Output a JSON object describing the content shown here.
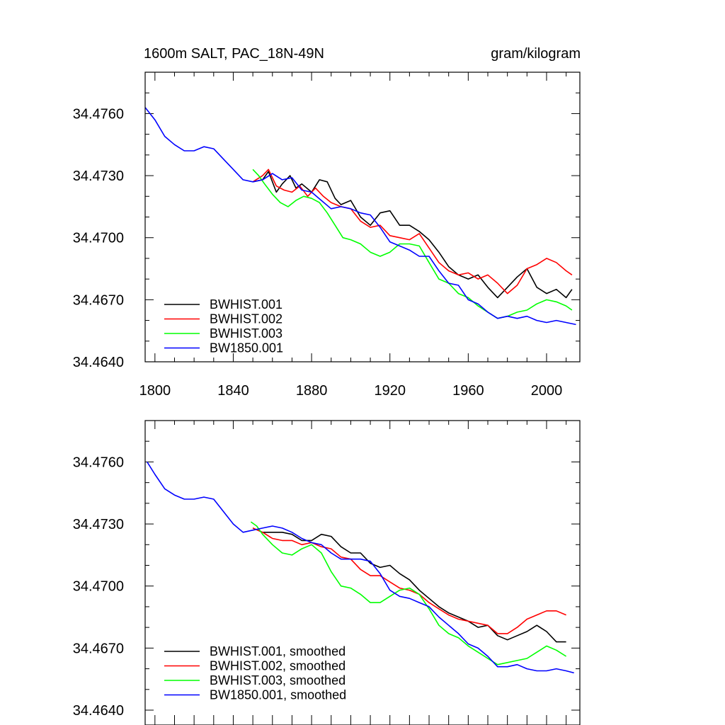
{
  "chart_data": [
    {
      "type": "line",
      "title": "1600m SALT, PAC_18N-49N",
      "units": "gram/kilogram",
      "xlim": [
        1795,
        2017
      ],
      "ylim": [
        34.464,
        34.478
      ],
      "xticks": [
        "1800",
        "1840",
        "1880",
        "1920",
        "1960",
        "2000"
      ],
      "yticks": [
        "34.4640",
        "34.4670",
        "34.4700",
        "34.4730",
        "34.4760"
      ],
      "series": [
        {
          "name": "BWHIST.001",
          "color": "#000000",
          "x": [
            1850,
            1855,
            1858,
            1862,
            1865,
            1869,
            1872,
            1875,
            1880,
            1884,
            1888,
            1892,
            1895,
            1900,
            1905,
            1910,
            1915,
            1920,
            1925,
            1930,
            1935,
            1940,
            1945,
            1950,
            1955,
            1960,
            1965,
            1970,
            1975,
            1980,
            1985,
            1990,
            1995,
            2000,
            2005,
            2010,
            2013
          ],
          "y": [
            34.4727,
            34.4728,
            34.4732,
            34.4722,
            34.4726,
            34.473,
            34.4724,
            34.4726,
            34.4722,
            34.4728,
            34.4727,
            34.4719,
            34.4716,
            34.4718,
            34.471,
            34.4706,
            34.4712,
            34.4713,
            34.4706,
            34.4706,
            34.4703,
            34.4699,
            34.4693,
            34.4686,
            34.4682,
            34.468,
            34.4682,
            34.4676,
            34.4671,
            34.4676,
            34.4681,
            34.4685,
            34.4676,
            34.4673,
            34.4675,
            34.4671,
            34.4675
          ]
        },
        {
          "name": "BWHIST.002",
          "color": "#ff0000",
          "x": [
            1850,
            1855,
            1858,
            1862,
            1866,
            1870,
            1874,
            1878,
            1882,
            1886,
            1890,
            1895,
            1900,
            1905,
            1910,
            1915,
            1920,
            1925,
            1930,
            1935,
            1940,
            1945,
            1950,
            1955,
            1960,
            1965,
            1970,
            1975,
            1980,
            1985,
            1990,
            1995,
            2000,
            2005,
            2010,
            2013
          ],
          "y": [
            34.4727,
            34.473,
            34.4733,
            34.4725,
            34.4723,
            34.4722,
            34.4725,
            34.472,
            34.4724,
            34.472,
            34.4717,
            34.4715,
            34.4714,
            34.4708,
            34.4705,
            34.4706,
            34.4701,
            34.47,
            34.4699,
            34.4702,
            34.4695,
            34.4688,
            34.4684,
            34.4682,
            34.4683,
            34.468,
            34.4682,
            34.4678,
            34.4673,
            34.4677,
            34.4685,
            34.4687,
            34.469,
            34.4688,
            34.4684,
            34.4682
          ]
        },
        {
          "name": "BWHIST.003",
          "color": "#00ff00",
          "x": [
            1850,
            1853,
            1856,
            1860,
            1864,
            1868,
            1872,
            1876,
            1880,
            1884,
            1888,
            1892,
            1896,
            1900,
            1905,
            1910,
            1915,
            1920,
            1925,
            1930,
            1935,
            1940,
            1945,
            1950,
            1955,
            1960,
            1965,
            1970,
            1975,
            1980,
            1985,
            1990,
            1995,
            2000,
            2005,
            2010,
            2013
          ],
          "y": [
            34.4733,
            34.473,
            34.4726,
            34.4721,
            34.4717,
            34.4715,
            34.4718,
            34.472,
            34.4719,
            34.4717,
            34.4712,
            34.4706,
            34.47,
            34.4699,
            34.4697,
            34.4693,
            34.4691,
            34.4693,
            34.4697,
            34.4697,
            34.4696,
            34.4688,
            34.468,
            34.4678,
            34.4673,
            34.4671,
            34.4667,
            34.4664,
            34.4661,
            34.4662,
            34.4664,
            34.4665,
            34.4668,
            34.467,
            34.4669,
            34.4667,
            34.4665
          ]
        },
        {
          "name": "BW1850.001",
          "color": "#0000ff",
          "x": [
            1795,
            1800,
            1805,
            1810,
            1815,
            1820,
            1825,
            1830,
            1835,
            1840,
            1845,
            1850,
            1855,
            1860,
            1865,
            1870,
            1875,
            1880,
            1885,
            1890,
            1895,
            1900,
            1905,
            1910,
            1915,
            1920,
            1925,
            1930,
            1935,
            1940,
            1945,
            1950,
            1955,
            1960,
            1965,
            1970,
            1975,
            1980,
            1985,
            1990,
            1995,
            2000,
            2005,
            2010,
            2015
          ],
          "y": [
            34.4763,
            34.4757,
            34.4749,
            34.4745,
            34.4742,
            34.4742,
            34.4744,
            34.4743,
            34.4738,
            34.4733,
            34.4728,
            34.4727,
            34.4728,
            34.4731,
            34.4728,
            34.4729,
            34.4723,
            34.4722,
            34.4718,
            34.4714,
            34.4715,
            34.4714,
            34.4712,
            34.4711,
            34.4705,
            34.4698,
            34.4696,
            34.4694,
            34.4691,
            34.4691,
            34.4684,
            34.4678,
            34.4677,
            34.467,
            34.4668,
            34.4664,
            34.4661,
            34.4662,
            34.4661,
            34.4662,
            34.466,
            34.4659,
            34.466,
            34.4659,
            34.4658
          ]
        }
      ]
    },
    {
      "type": "line",
      "xlim": [
        1795,
        2017
      ],
      "ylim": [
        34.464,
        34.478
      ],
      "yticks": [
        "34.4640",
        "34.4670",
        "34.4700",
        "34.4730",
        "34.4760"
      ],
      "series": [
        {
          "name": "BWHIST.001, smoothed",
          "color": "#000000",
          "x": [
            1850,
            1855,
            1860,
            1865,
            1870,
            1875,
            1880,
            1885,
            1890,
            1895,
            1900,
            1905,
            1910,
            1915,
            1920,
            1925,
            1930,
            1935,
            1940,
            1945,
            1950,
            1955,
            1960,
            1965,
            1970,
            1975,
            1980,
            1985,
            1990,
            1995,
            2000,
            2005,
            2010
          ],
          "y": [
            34.4728,
            34.4726,
            34.4726,
            34.4726,
            34.4725,
            34.4722,
            34.4722,
            34.4725,
            34.4724,
            34.4719,
            34.4716,
            34.4716,
            34.4711,
            34.4709,
            34.471,
            34.4706,
            34.4703,
            34.4698,
            34.4694,
            34.469,
            34.4687,
            34.4685,
            34.4683,
            34.468,
            34.4681,
            34.4676,
            34.4674,
            34.4676,
            34.4678,
            34.4681,
            34.4678,
            34.4673,
            34.4673
          ]
        },
        {
          "name": "BWHIST.002, smoothed",
          "color": "#ff0000",
          "x": [
            1850,
            1855,
            1860,
            1865,
            1870,
            1875,
            1880,
            1885,
            1890,
            1895,
            1900,
            1905,
            1910,
            1915,
            1920,
            1925,
            1930,
            1935,
            1940,
            1945,
            1950,
            1955,
            1960,
            1965,
            1970,
            1975,
            1980,
            1985,
            1990,
            1995,
            2000,
            2005,
            2010
          ],
          "y": [
            34.4728,
            34.4726,
            34.4723,
            34.4722,
            34.4722,
            34.472,
            34.4721,
            34.4719,
            34.4718,
            34.4714,
            34.4713,
            34.4708,
            34.4705,
            34.4705,
            34.4702,
            34.4699,
            34.4698,
            34.4696,
            34.4692,
            34.4689,
            34.4686,
            34.4684,
            34.4683,
            34.4682,
            34.4681,
            34.4677,
            34.4677,
            34.468,
            34.4684,
            34.4686,
            34.4688,
            34.4688,
            34.4686
          ]
        },
        {
          "name": "BWHIST.003, smoothed",
          "color": "#00ff00",
          "x": [
            1849,
            1852,
            1855,
            1860,
            1865,
            1870,
            1875,
            1880,
            1885,
            1890,
            1895,
            1900,
            1905,
            1910,
            1915,
            1920,
            1925,
            1930,
            1935,
            1940,
            1945,
            1950,
            1955,
            1960,
            1965,
            1970,
            1975,
            1980,
            1985,
            1990,
            1995,
            2000,
            2005,
            2010
          ],
          "y": [
            34.4731,
            34.4729,
            34.4725,
            34.472,
            34.4716,
            34.4715,
            34.4718,
            34.472,
            34.4716,
            34.4707,
            34.47,
            34.4699,
            34.4696,
            34.4692,
            34.4692,
            34.4695,
            34.4698,
            34.4699,
            34.4696,
            34.4689,
            34.4681,
            34.4677,
            34.4675,
            34.4671,
            34.4668,
            34.4665,
            34.4662,
            34.4663,
            34.4664,
            34.4665,
            34.4668,
            34.4671,
            34.4669,
            34.4666
          ]
        },
        {
          "name": "BW1850.001, smoothed",
          "color": "#0000ff",
          "x": [
            1796,
            1800,
            1805,
            1810,
            1815,
            1820,
            1825,
            1830,
            1835,
            1840,
            1845,
            1850,
            1855,
            1860,
            1865,
            1870,
            1875,
            1880,
            1885,
            1890,
            1895,
            1900,
            1905,
            1910,
            1915,
            1920,
            1925,
            1930,
            1935,
            1940,
            1945,
            1950,
            1955,
            1960,
            1965,
            1970,
            1975,
            1980,
            1985,
            1990,
            1995,
            2000,
            2005,
            2010,
            2014
          ],
          "y": [
            34.476,
            34.4754,
            34.4747,
            34.4744,
            34.4742,
            34.4742,
            34.4743,
            34.4742,
            34.4736,
            34.473,
            34.4726,
            34.4727,
            34.4728,
            34.4729,
            34.4728,
            34.4726,
            34.4723,
            34.4721,
            34.472,
            34.4716,
            34.4713,
            34.4713,
            34.4713,
            34.4712,
            34.4706,
            34.4698,
            34.4695,
            34.4694,
            34.4692,
            34.469,
            34.4685,
            34.4681,
            34.4677,
            34.4672,
            34.467,
            34.4666,
            34.4661,
            34.4661,
            34.4662,
            34.466,
            34.4659,
            34.4659,
            34.466,
            34.4659,
            34.4658
          ]
        }
      ]
    }
  ]
}
